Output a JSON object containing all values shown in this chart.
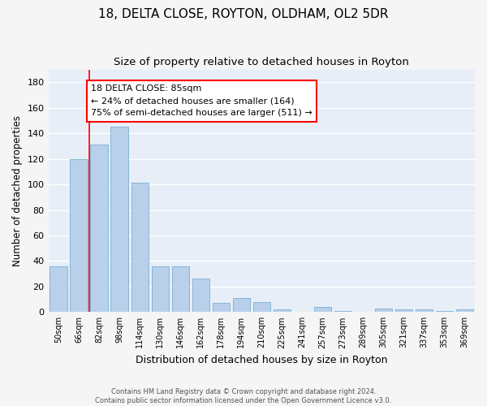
{
  "title_line1": "18, DELTA CLOSE, ROYTON, OLDHAM, OL2 5DR",
  "title_line2": "Size of property relative to detached houses in Royton",
  "xlabel": "Distribution of detached houses by size in Royton",
  "ylabel": "Number of detached properties",
  "categories": [
    "50sqm",
    "66sqm",
    "82sqm",
    "98sqm",
    "114sqm",
    "130sqm",
    "146sqm",
    "162sqm",
    "178sqm",
    "194sqm",
    "210sqm",
    "225sqm",
    "241sqm",
    "257sqm",
    "273sqm",
    "289sqm",
    "305sqm",
    "321sqm",
    "337sqm",
    "353sqm",
    "369sqm"
  ],
  "values": [
    36,
    120,
    131,
    145,
    101,
    36,
    36,
    26,
    7,
    11,
    8,
    2,
    0,
    4,
    1,
    0,
    3,
    2,
    2,
    1,
    2
  ],
  "bar_color": "#b8d0ea",
  "bar_edge_color": "#7aafd4",
  "vline_x": 1.5,
  "vline_color": "red",
  "annotation_line1": "18 DELTA CLOSE: 85sqm",
  "annotation_line2": "← 24% of detached houses are smaller (164)",
  "annotation_line3": "75% of semi-detached houses are larger (511) →",
  "annotation_box_color": "red",
  "annotation_box_facecolor": "white",
  "footer_line1": "Contains HM Land Registry data © Crown copyright and database right 2024.",
  "footer_line2": "Contains public sector information licensed under the Open Government Licence v3.0.",
  "ylim": [
    0,
    190
  ],
  "yticks": [
    0,
    20,
    40,
    60,
    80,
    100,
    120,
    140,
    160,
    180
  ],
  "bg_color": "#e8eef7",
  "grid_color": "white",
  "fig_bg_color": "#f5f5f5",
  "title_fontsize": 11,
  "subtitle_fontsize": 9.5
}
